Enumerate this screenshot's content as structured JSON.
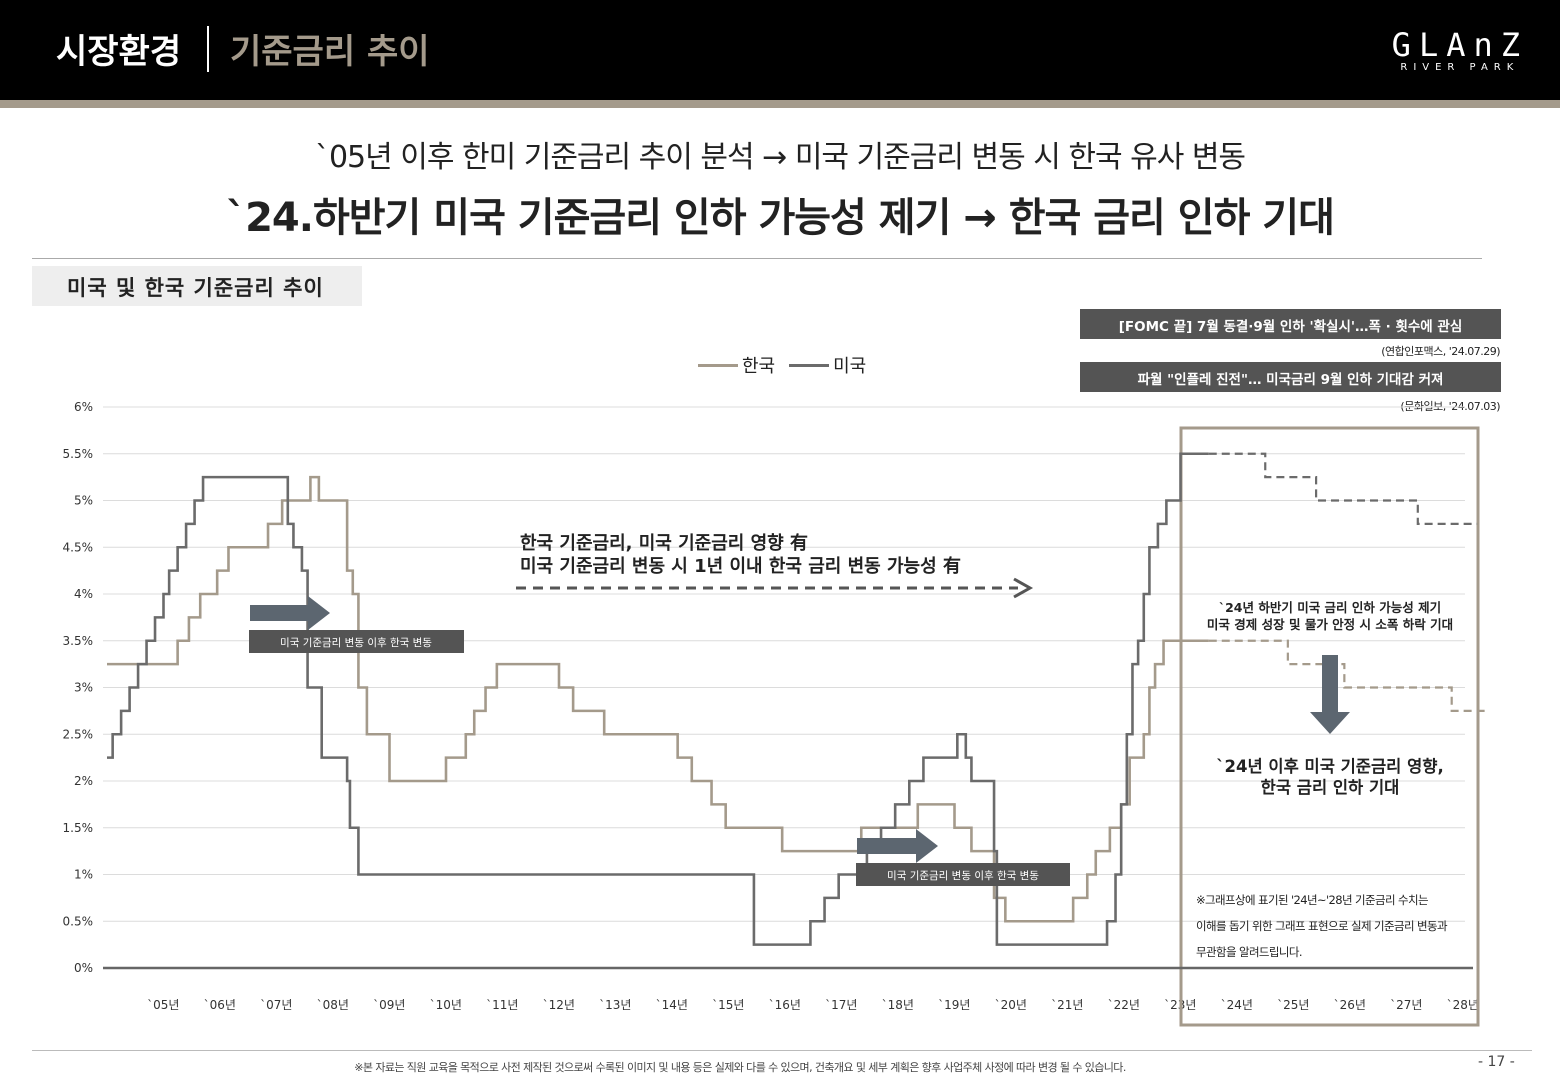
{
  "header": {
    "section": "시장환경",
    "page": "기준금리 추이",
    "logo": "GLAnZ",
    "logo_sub": "RIVER PARK"
  },
  "headline": {
    "line1": "`05년 이후 한미 기준금리 추이 분석 → 미국 기준금리 변동 시 한국 유사 변동",
    "line2": "`24.하반기 미국 기준금리 인하 가능성 제기 → 한국 금리 인하 기대"
  },
  "chart_title": "미국 및 한국 기준금리 추이",
  "news": [
    {
      "headline": "[FOMC 끝] 7월 동결·9월 인하 '확실시'…폭 · 횟수에 관심",
      "source": "(연합인포맥스, '24.07.29)"
    },
    {
      "headline": "파월 \"인플레 진전\"… 미국금리 9월 인하 기대감 커져",
      "source": "(문화일보, '24.07.03)"
    }
  ],
  "annotations": {
    "main_1": "한국 기준금리, 미국 기준금리 영향 有",
    "main_2": "미국 기준금리 변동 시 1년 이내 한국 금리 변동 가능성 有",
    "lag_label": "미국 기준금리 변동 이후 한국 변동",
    "forecast_1": "`24년 하반기 미국 금리 인하 가능성 제기",
    "forecast_2": "미국 경제 성장 및 물가 안정 시 소폭 하락 기대",
    "expect_1": "`24년 이후 미국 기준금리 영향,",
    "expect_2": "한국 금리 인하 기대",
    "note_1": "※그래프상에 표기된 '24년~'28년 기준금리 수치는",
    "note_2": "이해를 돕기 위한 그래프 표현으로 실제 기준금리 변동과",
    "note_3": "무관함을 알려드립니다."
  },
  "footer": "※본 자료는 직원 교육을 목적으로 사전 제작된 것으로써 수록된 이미지 및 내용 등은 실제와 다를 수 있으며, 건축개요 및 세부 계획은 향후 사업주체 사정에 따라 변경 될 수 있습니다.",
  "page_number": "- 17 -",
  "colors": {
    "korea": "#a49a8b",
    "usa": "#6b6b6b",
    "forecast_box": "#a49a8b",
    "arrow": "#5c6670"
  },
  "chart_data": {
    "type": "line",
    "title": "미국 및 한국 기준금리 추이",
    "xlabel": "",
    "ylabel": "",
    "ylim": [
      0,
      6
    ],
    "xlim": [
      2004.5,
      2028.9
    ],
    "yticks": [
      "0%",
      "0.5%",
      "1%",
      "1.5%",
      "2%",
      "2.5%",
      "3%",
      "3.5%",
      "4%",
      "4.5%",
      "5%",
      "5.5%",
      "6%"
    ],
    "xticks": [
      "`05년",
      "`06년",
      "`07년",
      "`08년",
      "`09년",
      "`10년",
      "`11년",
      "`12년",
      "`13년",
      "`14년",
      "`15년",
      "`16년",
      "`17년",
      "`18년",
      "`19년",
      "`20년",
      "`21년",
      "`22년",
      "`23년",
      "`24년",
      "`25년",
      "`26년",
      "`27년",
      "`28년"
    ],
    "grid": true,
    "legend": "top-center",
    "forecast_start": 2024.0,
    "series": [
      {
        "name": "한국",
        "x": [
          2004.5,
          2005.75,
          2005.95,
          2006.15,
          2006.45,
          2006.65,
          2007.35,
          2007.6,
          2008.1,
          2008.25,
          2008.75,
          2008.85,
          2008.95,
          2009.1,
          2009.5,
          2010.5,
          2010.85,
          2011.0,
          2011.2,
          2011.4,
          2011.5,
          2012.5,
          2012.75,
          2013.3,
          2014.6,
          2014.85,
          2015.2,
          2015.45,
          2016.45,
          2017.85,
          2018.85,
          2019.5,
          2019.8,
          2020.2,
          2020.4,
          2021.6,
          2021.85,
          2022.0,
          2022.25,
          2022.45,
          2022.6,
          2022.85,
          2022.95,
          2023.05,
          2023.2,
          2025.4,
          2025.6,
          2026.4,
          2026.6,
          2028.3,
          2028.6
        ],
        "y": [
          3.25,
          3.5,
          3.75,
          4.0,
          4.25,
          4.5,
          4.75,
          5.0,
          5.25,
          5.0,
          4.25,
          4.0,
          3.0,
          2.5,
          2.0,
          2.25,
          2.5,
          2.75,
          3.0,
          3.25,
          3.25,
          3.0,
          2.75,
          2.5,
          2.25,
          2.0,
          1.75,
          1.5,
          1.25,
          1.5,
          1.75,
          1.5,
          1.25,
          0.75,
          0.5,
          0.75,
          1.0,
          1.25,
          1.5,
          1.75,
          2.25,
          2.5,
          3.0,
          3.25,
          3.5,
          3.25,
          3.25,
          3.0,
          3.0,
          2.75,
          2.75
        ]
      },
      {
        "name": "미국",
        "x": [
          2004.5,
          2004.6,
          2004.75,
          2004.9,
          2005.05,
          2005.2,
          2005.35,
          2005.5,
          2005.6,
          2005.75,
          2005.9,
          2006.05,
          2006.2,
          2006.35,
          2006.5,
          2007.7,
          2007.8,
          2007.95,
          2008.05,
          2008.1,
          2008.3,
          2008.75,
          2008.8,
          2008.95,
          2015.95,
          2016.95,
          2017.2,
          2017.45,
          2017.95,
          2018.2,
          2018.45,
          2018.7,
          2018.95,
          2019.55,
          2019.7,
          2019.8,
          2020.2,
          2020.25,
          2022.2,
          2022.35,
          2022.45,
          2022.55,
          2022.65,
          2022.75,
          2022.85,
          2022.95,
          2023.1,
          2023.25,
          2023.5,
          2025.0,
          2025.9,
          2027.7
        ],
        "y": [
          2.25,
          2.5,
          2.75,
          3.0,
          3.25,
          3.5,
          3.75,
          4.0,
          4.25,
          4.5,
          4.75,
          5.0,
          5.25,
          5.25,
          5.25,
          4.75,
          4.5,
          4.25,
          3.0,
          3.0,
          2.25,
          2.0,
          1.5,
          1.0,
          0.25,
          0.5,
          0.75,
          1.0,
          1.25,
          1.5,
          1.75,
          2.0,
          2.25,
          2.5,
          2.25,
          2.0,
          1.25,
          0.25,
          0.5,
          1.0,
          1.75,
          2.5,
          3.25,
          3.5,
          4.0,
          4.5,
          4.75,
          5.0,
          5.5,
          5.25,
          5.0,
          4.75
        ]
      }
    ]
  }
}
